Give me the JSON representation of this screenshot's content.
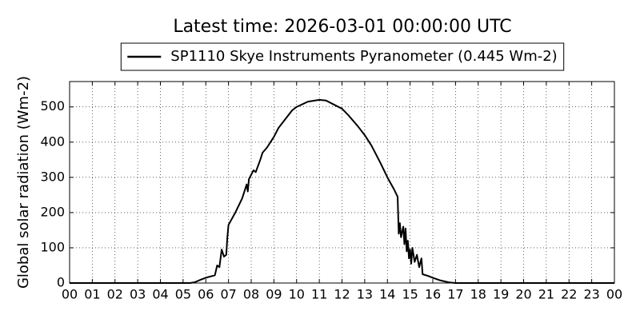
{
  "chart_data": {
    "type": "line",
    "title": "Latest time: 2026-03-01 00:00:00 UTC",
    "y_label": "Global solar radiation (Wm-2)",
    "x": [
      0,
      5.3,
      5.5,
      5.8,
      6.0,
      6.4,
      6.5,
      6.6,
      6.7,
      6.8,
      6.9,
      6.95,
      7.0,
      7.3,
      7.6,
      7.8,
      7.85,
      7.9,
      8.1,
      8.2,
      8.4,
      8.5,
      8.7,
      8.9,
      9.0,
      9.2,
      9.5,
      9.8,
      10.0,
      10.5,
      11.0,
      11.3,
      11.6,
      12.0,
      12.3,
      12.7,
      13.0,
      13.3,
      13.7,
      14.0,
      14.3,
      14.45,
      14.5,
      14.55,
      14.6,
      14.7,
      14.75,
      14.8,
      14.85,
      14.9,
      14.95,
      15.0,
      15.05,
      15.1,
      15.2,
      15.3,
      15.4,
      15.5,
      15.55,
      15.8,
      16.0,
      16.3,
      16.7,
      17.0,
      24
    ],
    "series": [
      {
        "name": "SP1110 Skye Instruments Pyranometer (0.445 Wm-2)",
        "color": "#000000",
        "values": [
          0,
          0,
          2,
          10,
          15,
          22,
          50,
          45,
          95,
          75,
          80,
          130,
          165,
          200,
          240,
          280,
          260,
          295,
          320,
          315,
          350,
          370,
          385,
          405,
          415,
          440,
          465,
          490,
          500,
          515,
          520,
          518,
          508,
          495,
          475,
          445,
          420,
          390,
          340,
          300,
          265,
          245,
          140,
          170,
          130,
          160,
          110,
          155,
          90,
          120,
          70,
          95,
          55,
          100,
          60,
          80,
          45,
          70,
          25,
          20,
          15,
          8,
          2,
          0,
          0
        ]
      }
    ],
    "xlim": [
      0,
      24
    ],
    "xticks": [
      {
        "value": 0,
        "label": "00"
      },
      {
        "value": 1,
        "label": "01"
      },
      {
        "value": 2,
        "label": "02"
      },
      {
        "value": 3,
        "label": "03"
      },
      {
        "value": 4,
        "label": "04"
      },
      {
        "value": 5,
        "label": "05"
      },
      {
        "value": 6,
        "label": "06"
      },
      {
        "value": 7,
        "label": "07"
      },
      {
        "value": 8,
        "label": "08"
      },
      {
        "value": 9,
        "label": "09"
      },
      {
        "value": 10,
        "label": "10"
      },
      {
        "value": 11,
        "label": "11"
      },
      {
        "value": 12,
        "label": "12"
      },
      {
        "value": 13,
        "label": "13"
      },
      {
        "value": 14,
        "label": "14"
      },
      {
        "value": 15,
        "label": "15"
      },
      {
        "value": 16,
        "label": "16"
      },
      {
        "value": 17,
        "label": "17"
      },
      {
        "value": 18,
        "label": "18"
      },
      {
        "value": 19,
        "label": "19"
      },
      {
        "value": 20,
        "label": "20"
      },
      {
        "value": 21,
        "label": "21"
      },
      {
        "value": 22,
        "label": "22"
      },
      {
        "value": 23,
        "label": "23"
      },
      {
        "value": 24,
        "label": "00"
      }
    ],
    "ylim": [
      0,
      572
    ],
    "yticks": [
      0,
      100,
      200,
      300,
      400,
      500
    ],
    "grid": true
  }
}
